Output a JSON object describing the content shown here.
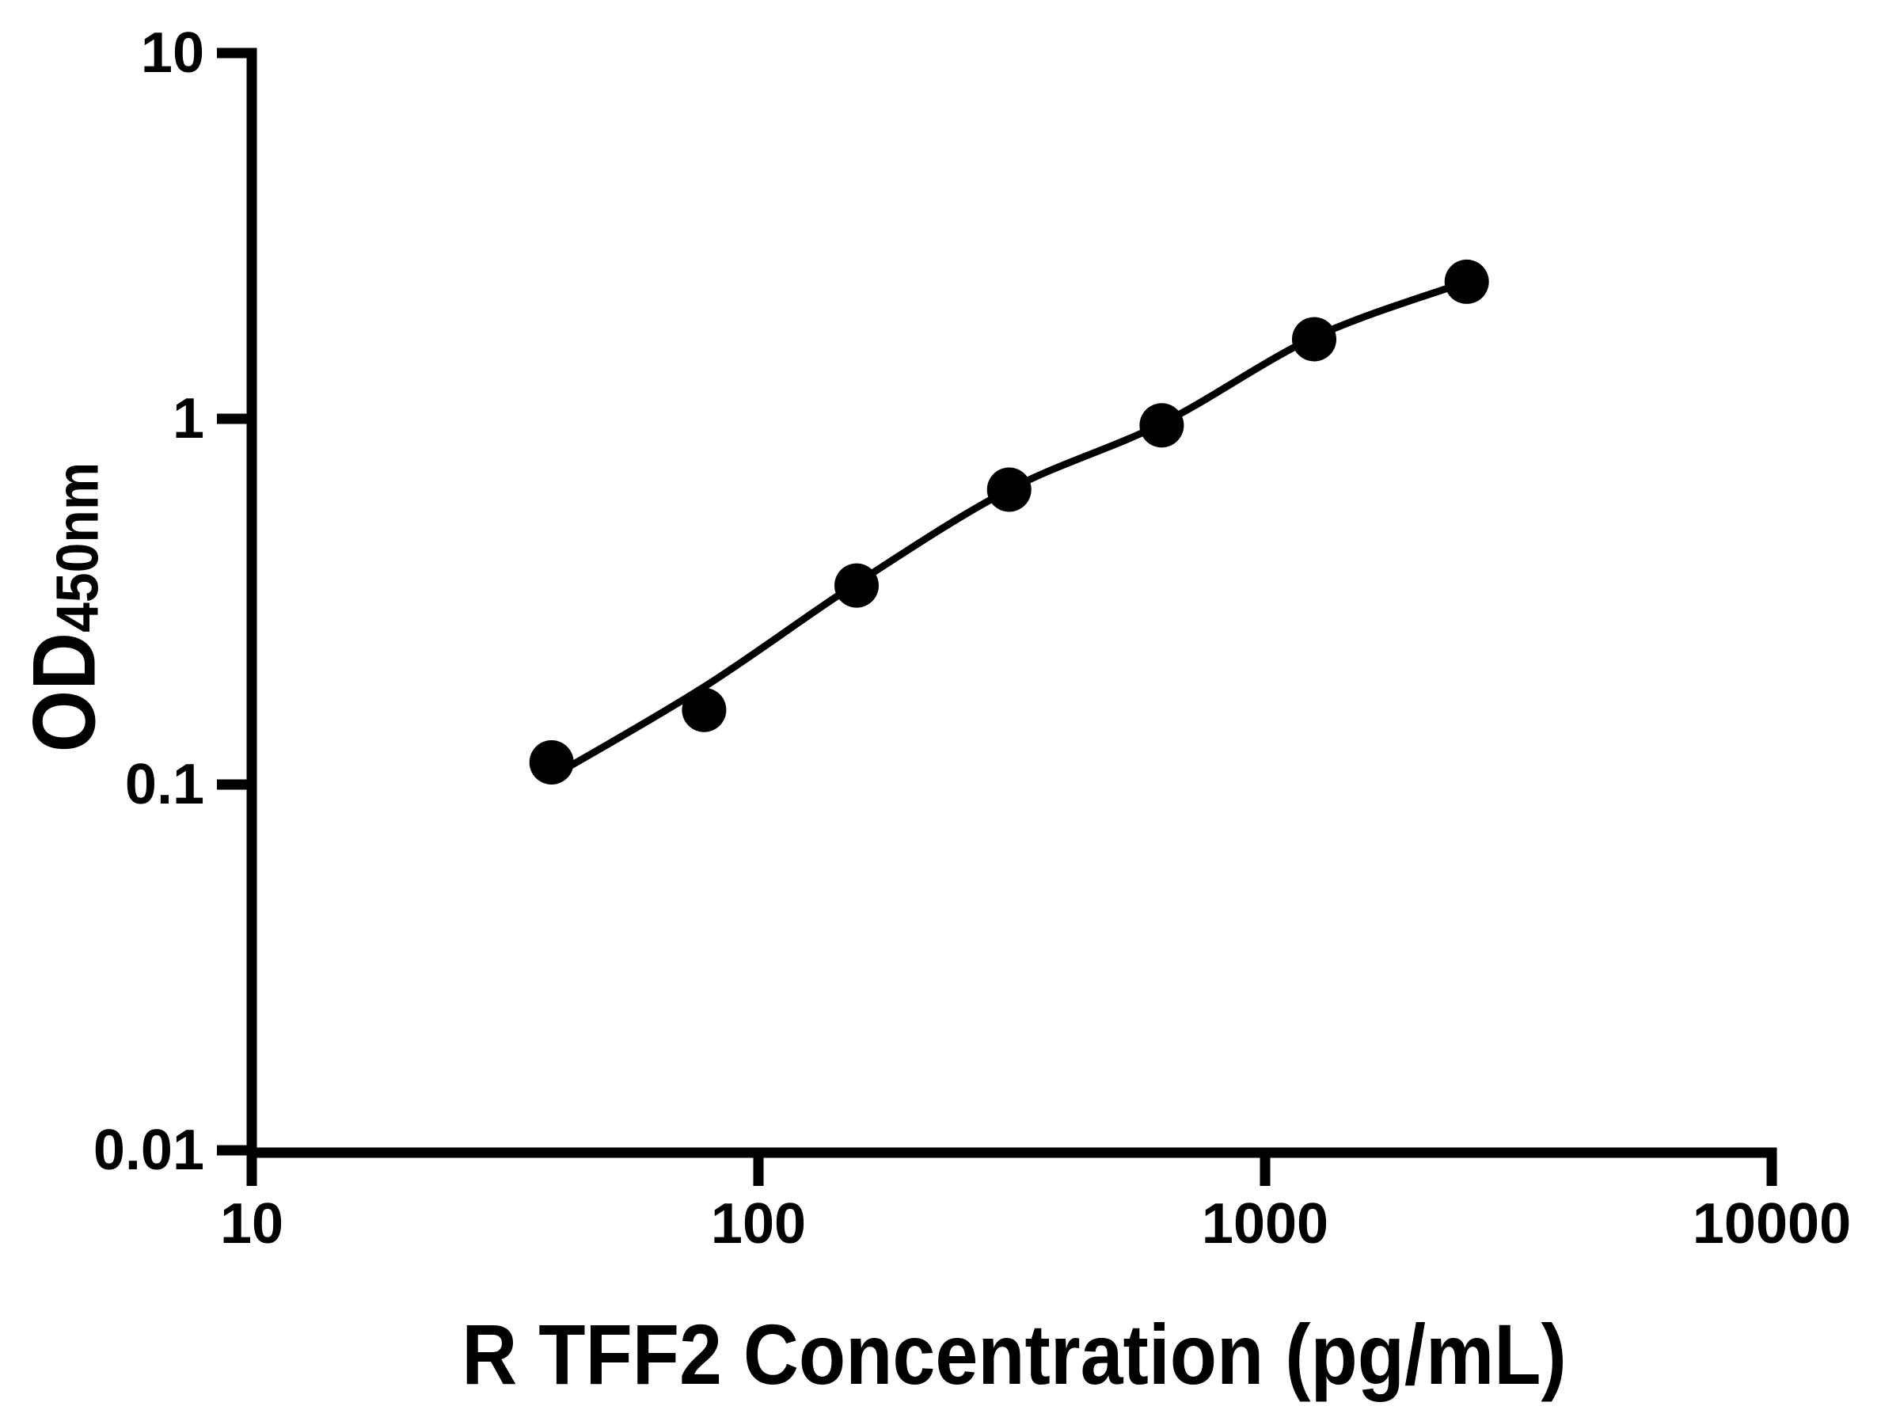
{
  "chart_data": {
    "type": "scatter",
    "title": "",
    "xlabel": "R TFF2 Concentration (pg/mL)",
    "ylabel_main": "OD",
    "ylabel_sub": "450nm",
    "x_scale": "log",
    "y_scale": "log",
    "xlim": [
      10,
      10000
    ],
    "ylim": [
      0.01,
      10
    ],
    "x_ticks": [
      10,
      100,
      1000,
      10000
    ],
    "x_tick_labels": [
      "10",
      "100",
      "1000",
      "10000"
    ],
    "y_ticks": [
      10,
      1,
      0.1,
      0.01
    ],
    "y_tick_labels": [
      "10",
      "1",
      "0.1",
      "0.01"
    ],
    "grid": false,
    "legend": "none",
    "marker_color": "#000000",
    "line_color": "#000000",
    "background_color": "#ffffff",
    "series": [
      {
        "name": "standard-curve-points",
        "x": [
          39.06,
          78.13,
          156.25,
          312.5,
          625,
          1250,
          2500
        ],
        "y": [
          0.115,
          0.16,
          0.35,
          0.64,
          0.96,
          1.65,
          2.37
        ]
      }
    ],
    "fit_curve": {
      "name": "4PL-fit-line",
      "x": [
        39.06,
        78.13,
        156.25,
        312.5,
        625,
        1250,
        2500
      ],
      "y": [
        0.105,
        0.185,
        0.355,
        0.64,
        0.97,
        1.67,
        2.37
      ]
    }
  }
}
